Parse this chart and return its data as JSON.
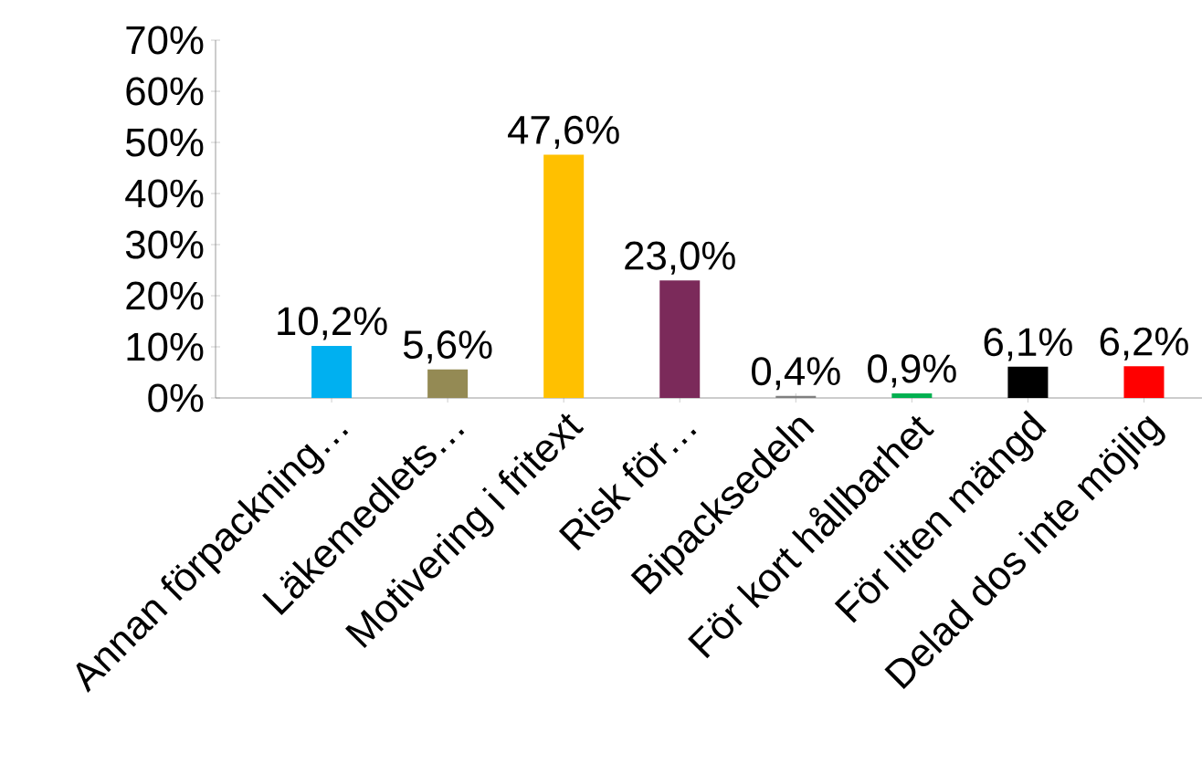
{
  "chart_data": {
    "type": "bar",
    "categories": [
      "Annan förpackning…",
      "Läkemedlets…",
      "Motivering i fritext",
      "Risk för…",
      "Bipacksedeln",
      "För kort hållbarhet",
      "För liten mängd",
      "Delad dos inte möjlig"
    ],
    "values": [
      10.2,
      5.6,
      47.6,
      23.0,
      0.4,
      0.9,
      6.1,
      6.2
    ],
    "colors": [
      "#00b0f0",
      "#948a54",
      "#ffc000",
      "#7b2a5a",
      "#7f7f7f",
      "#00b050",
      "#000000",
      "#ff0000"
    ],
    "value_labels": [
      "10,2%",
      "5,6%",
      "47,6%",
      "23,0%",
      "0,4%",
      "0,9%",
      "6,1%",
      "6,2%"
    ],
    "ylim": [
      0,
      70
    ],
    "yticks": [
      {
        "value": 0,
        "label": "0%"
      },
      {
        "value": 10,
        "label": "10%"
      },
      {
        "value": 20,
        "label": "20%"
      },
      {
        "value": 30,
        "label": "30%"
      },
      {
        "value": 40,
        "label": "40%"
      },
      {
        "value": 50,
        "label": "50%"
      },
      {
        "value": 60,
        "label": "60%"
      },
      {
        "value": 70,
        "label": "70%"
      }
    ]
  }
}
